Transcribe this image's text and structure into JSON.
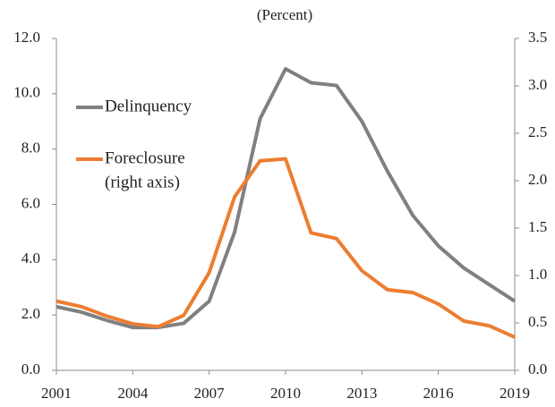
{
  "chart_data": {
    "type": "line",
    "title": "(Percent)",
    "x": [
      2001,
      2002,
      2003,
      2004,
      2005,
      2006,
      2007,
      2008,
      2009,
      2010,
      2011,
      2012,
      2013,
      2014,
      2015,
      2016,
      2017,
      2018,
      2019
    ],
    "series": [
      {
        "name": "Delinquency",
        "color": "#808080",
        "values": [
          2.3,
          2.1,
          1.8,
          1.55,
          1.55,
          1.7,
          2.5,
          5.0,
          9.1,
          10.9,
          10.4,
          10.3,
          9.0,
          7.2,
          5.6,
          4.5,
          3.7,
          3.1,
          2.5
        ]
      },
      {
        "name": "Foreclosure",
        "color": "#ed7d31",
        "axis": "y2",
        "values": [
          0.73,
          0.67,
          0.57,
          0.49,
          0.46,
          0.58,
          1.03,
          1.83,
          2.21,
          2.23,
          1.45,
          1.39,
          1.05,
          0.85,
          0.82,
          0.7,
          0.52,
          0.47,
          0.35
        ]
      }
    ],
    "y2_note": "(right axis)",
    "xlim": [
      2001,
      2019
    ],
    "xticks": [
      2001,
      2004,
      2007,
      2010,
      2013,
      2016,
      2019
    ],
    "ylim": [
      0,
      12
    ],
    "yticks": [
      {
        "value": 0,
        "label": "0.0"
      },
      {
        "value": 2,
        "label": "2.0"
      },
      {
        "value": 4,
        "label": "4.0"
      },
      {
        "value": 6,
        "label": "6.0"
      },
      {
        "value": 8,
        "label": "8.0"
      },
      {
        "value": 10,
        "label": "10.0"
      },
      {
        "value": 12,
        "label": "12.0"
      }
    ],
    "y2lim": [
      0,
      3.5
    ],
    "y2ticks": [
      {
        "value": 0,
        "label": "0.0"
      },
      0.5,
      {
        "value": 1,
        "label": "1.0"
      },
      1.5,
      {
        "value": 2,
        "label": "2.0"
      },
      2.5,
      {
        "value": 3,
        "label": "3.0"
      },
      3.5
    ]
  }
}
